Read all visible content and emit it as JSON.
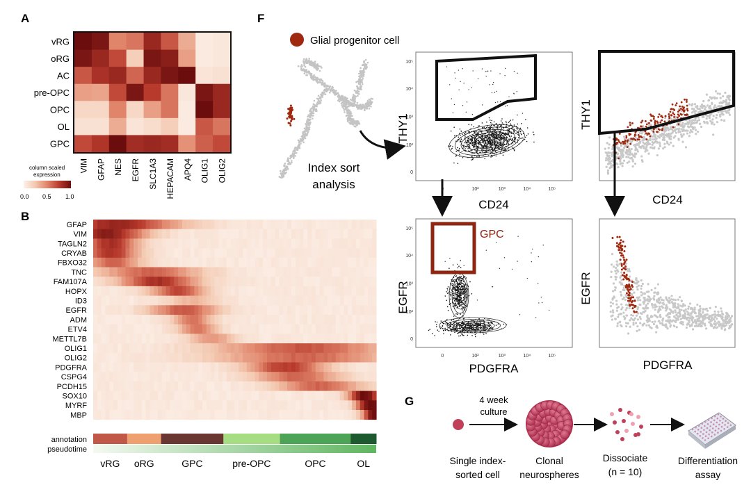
{
  "panels": {
    "A": {
      "label": "A",
      "rows": [
        "vRG",
        "oRG",
        "AC",
        "pre-OPC",
        "OPC",
        "OL",
        "GPC"
      ],
      "cols": [
        "VIM",
        "GFAP",
        "NES",
        "EGFR",
        "SLC1A3",
        "HEPACAM",
        "APQ4",
        "OLIG1",
        "OLIG2"
      ],
      "values": [
        [
          1.0,
          0.95,
          0.5,
          0.55,
          0.85,
          0.65,
          0.35,
          0.04,
          0.06
        ],
        [
          0.95,
          0.85,
          0.7,
          0.2,
          0.95,
          0.9,
          0.4,
          0.04,
          0.06
        ],
        [
          0.65,
          0.8,
          0.85,
          0.6,
          0.85,
          0.95,
          1.0,
          0.08,
          0.1
        ],
        [
          0.4,
          0.38,
          0.7,
          0.95,
          0.75,
          0.55,
          0.06,
          0.95,
          0.85
        ],
        [
          0.15,
          0.15,
          0.5,
          0.15,
          0.4,
          0.55,
          0.04,
          1.0,
          0.85
        ],
        [
          0.1,
          0.1,
          0.35,
          0.08,
          0.12,
          0.2,
          0.04,
          0.65,
          0.55
        ],
        [
          0.7,
          0.78,
          1.0,
          0.82,
          0.85,
          0.82,
          0.45,
          0.62,
          0.7
        ]
      ],
      "legend": {
        "title_line1": "column scaled",
        "title_line2": "expression",
        "ticks": [
          "0.0",
          "0.5",
          "1.0"
        ]
      }
    },
    "B": {
      "label": "B",
      "genes": [
        "GFAP",
        "VIM",
        "TAGLN2",
        "CRYAB",
        "FBXO32",
        "TNC",
        "FAM107A",
        "HOPX",
        "ID3",
        "EGFR",
        "ADM",
        "ETV4",
        "METTL7B",
        "OLIG1",
        "OLIG2",
        "PDGFRA",
        "CSPG4",
        "PCDH15",
        "SOX10",
        "MYRF",
        "MBP"
      ],
      "gene_peaks": [
        [
          0.08,
          0.22,
          0.8
        ],
        [
          0.05,
          0.14,
          0.85
        ],
        [
          0.06,
          0.1,
          0.75
        ],
        [
          0.06,
          0.1,
          0.75
        ],
        [
          0.07,
          0.1,
          0.55
        ],
        [
          0.2,
          0.18,
          0.55
        ],
        [
          0.23,
          0.14,
          0.75
        ],
        [
          0.3,
          0.1,
          0.65
        ],
        [
          0.35,
          0.1,
          0.25
        ],
        [
          0.32,
          0.12,
          0.6
        ],
        [
          0.35,
          0.07,
          0.5
        ],
        [
          0.37,
          0.07,
          0.5
        ],
        [
          0.42,
          0.09,
          0.35
        ],
        [
          0.74,
          0.3,
          0.6
        ],
        [
          0.74,
          0.3,
          0.55
        ],
        [
          0.68,
          0.14,
          0.7
        ],
        [
          0.72,
          0.15,
          0.55
        ],
        [
          0.8,
          0.15,
          0.55
        ],
        [
          0.96,
          0.06,
          0.95
        ],
        [
          0.98,
          0.05,
          1.0
        ],
        [
          0.99,
          0.04,
          0.95
        ]
      ],
      "annotation_label": "annotation",
      "pseudotime_label": "pseudotime",
      "segments": [
        {
          "name": "vRG",
          "start": 0.0,
          "end": 0.12,
          "color": "#c05848"
        },
        {
          "name": "oRG",
          "start": 0.12,
          "end": 0.24,
          "color": "#eea070"
        },
        {
          "name": "GPC",
          "start": 0.24,
          "end": 0.46,
          "color": "#6a3632"
        },
        {
          "name": "pre-OPC",
          "start": 0.46,
          "end": 0.66,
          "color": "#a6dc82"
        },
        {
          "name": "OPC",
          "start": 0.66,
          "end": 0.91,
          "color": "#4ea456"
        },
        {
          "name": "OL",
          "start": 0.91,
          "end": 1.0,
          "color": "#1e5a30"
        }
      ],
      "x_labels": [
        "vRG",
        "oRG",
        "GPC",
        "pre-OPC",
        "OPC",
        "OL"
      ]
    },
    "F": {
      "label": "F",
      "legend_label": "Glial progenitor cell",
      "umap_caption_line1": "Index sort",
      "umap_caption_line2": "analysis",
      "plots": [
        {
          "xlabel": "CD24",
          "ylabel": "THY1"
        },
        {
          "xlabel": "CD24",
          "ylabel": "THY1"
        },
        {
          "xlabel": "PDGFRA",
          "ylabel": "EGFR",
          "gate_label": "GPC"
        },
        {
          "xlabel": "PDGFRA",
          "ylabel": "EGFR"
        }
      ],
      "x_ticks": [
        "0",
        "10²",
        "10³",
        "10⁴",
        "10⁵"
      ],
      "y_ticks": [
        "10⁵",
        "10⁴",
        "10³",
        "10²",
        "0"
      ]
    },
    "G": {
      "label": "G",
      "step1_line1": "Single index-",
      "step1_line2": "sorted cell",
      "arrow_line1": "4 week",
      "arrow_line2": "culture",
      "step2_line1": "Clonal",
      "step2_line2": "neurospheres",
      "step3_line1": "Dissociate",
      "step3_line2": "(n = 10)",
      "step4_line1": "Differentiation",
      "step4_line2": "assay"
    }
  },
  "colors": {
    "heat_low": "#fcf1ea",
    "heat_high": "#6b0d0d",
    "gpc_red": "#a0280f",
    "gate_red": "#8e2612",
    "contour": "#303030",
    "grey_cell": "#c4c4c4",
    "pseudotime_start": "#f4f9f1",
    "pseudotime_end": "#5fb560",
    "g_cell": "#c0405a",
    "g_sphere": "#c33b5c",
    "g_plate": "#c78fb8"
  }
}
